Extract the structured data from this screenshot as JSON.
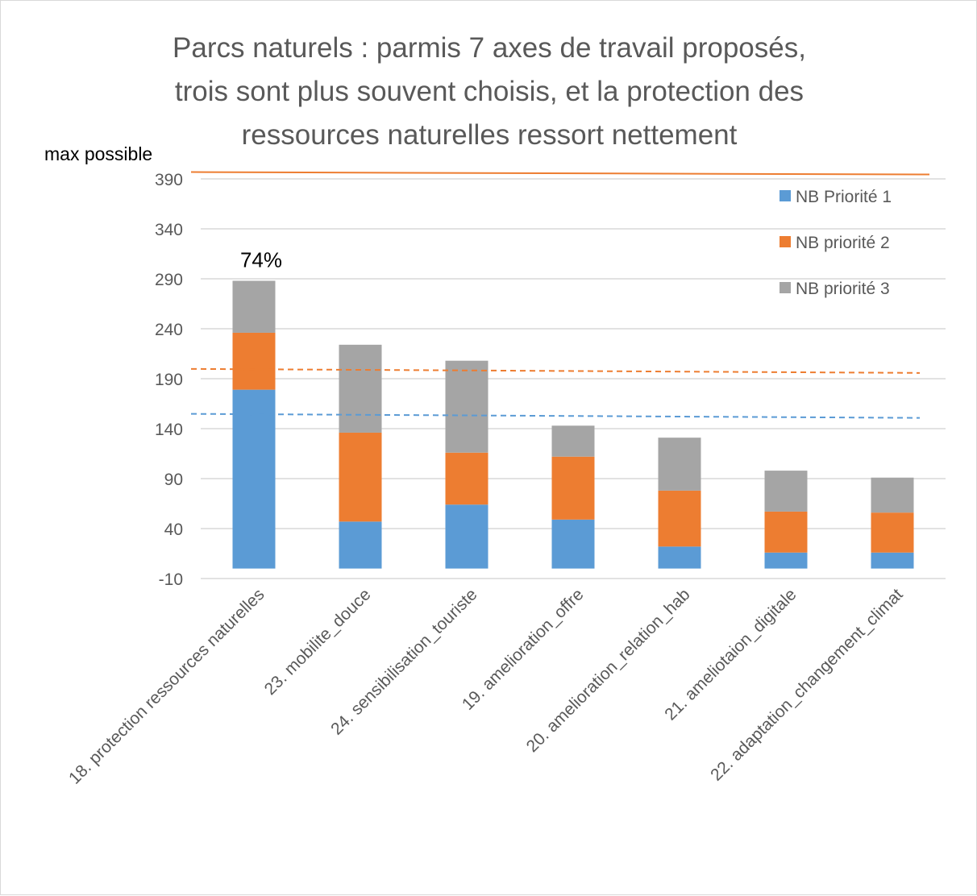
{
  "chart_data": {
    "type": "bar",
    "stacked": true,
    "title_lines": [
      "Parcs naturels : parmis 7 axes de travail proposés,",
      "trois sont plus souvent choisis, et la protection des",
      "ressources naturelles ressort nettement"
    ],
    "categories": [
      "18. protection ressources naturelles",
      "23. mobilite_douce",
      "24. sensibilisation_touriste",
      "19. amelioration_offre",
      "20. amelioration_relation_hab",
      "21. ameliotaion_digitale",
      "22. adaptation_changement_climat"
    ],
    "series": [
      {
        "name": "NB Priorité 1",
        "color": "#5b9bd5",
        "values": [
          179,
          47,
          64,
          49,
          22,
          16,
          16
        ]
      },
      {
        "name": "NB priorité 2",
        "color": "#ed7d31",
        "values": [
          57,
          89,
          52,
          63,
          56,
          41,
          40
        ]
      },
      {
        "name": "NB priorité 3",
        "color": "#a5a5a5",
        "values": [
          52,
          88,
          92,
          31,
          53,
          41,
          35
        ]
      }
    ],
    "yticks": [
      -10,
      40,
      90,
      140,
      190,
      240,
      290,
      340,
      390
    ],
    "ylim": [
      -10,
      390
    ],
    "reference_lines": [
      {
        "label": "max possible",
        "value": 396,
        "color": "#ed7d31",
        "style": "solid"
      },
      {
        "value": 199,
        "color": "#ed7d31",
        "style": "dashed"
      },
      {
        "value": 154,
        "color": "#5b9bd5",
        "style": "dashed"
      }
    ],
    "annotations": [
      {
        "text": "74%",
        "category_index": 0
      }
    ],
    "legend_position": "top-right",
    "grid": true
  }
}
